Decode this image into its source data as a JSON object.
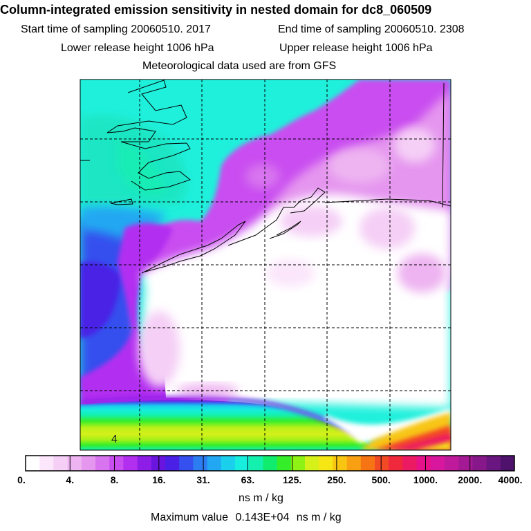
{
  "header": {
    "title": "Column-integrated emission sensitivity in nested domain for dc8_060509",
    "start_label": "Start time of sampling",
    "start_value": "20060510.  2017",
    "end_label": "End time of sampling",
    "end_value": "20060510.  2308",
    "lower_label": "Lower release height",
    "lower_value": "1006 hPa",
    "upper_label": "Upper release height",
    "upper_value": "1006 hPa",
    "met_note": "Meteorological data used are from GFS"
  },
  "map": {
    "region_marker": "4"
  },
  "colorbar": {
    "labels": [
      "0.",
      "4.",
      "8.",
      "16.",
      "31.",
      "63.",
      "125.",
      "250.",
      "500.",
      "1000.",
      "2000.",
      "4000."
    ],
    "colors": [
      "#ffffff",
      "#fbe6fb",
      "#f5cff6",
      "#eeb4f1",
      "#e596ef",
      "#d874ef",
      "#c94ef0",
      "#b22ff0",
      "#8e1de8",
      "#6a14e0",
      "#4a20e6",
      "#3550ee",
      "#2d7df2",
      "#22a8f2",
      "#1ad0ec",
      "#17eedd",
      "#14f0ae",
      "#10ec6e",
      "#35ee2a",
      "#8ef214",
      "#d6f01a",
      "#f5e614",
      "#f8c612",
      "#f8a012",
      "#f67414",
      "#f34a26",
      "#f0283c",
      "#ec1a62",
      "#e6128a",
      "#d8169e",
      "#c01a9c",
      "#a41a94",
      "#86188a",
      "#6a1680",
      "#4e126c"
    ],
    "unit": "ns m / kg"
  },
  "footer": {
    "max_label": "Maximum value",
    "max_value": "0.143E+04",
    "max_unit": "ns m / kg"
  }
}
